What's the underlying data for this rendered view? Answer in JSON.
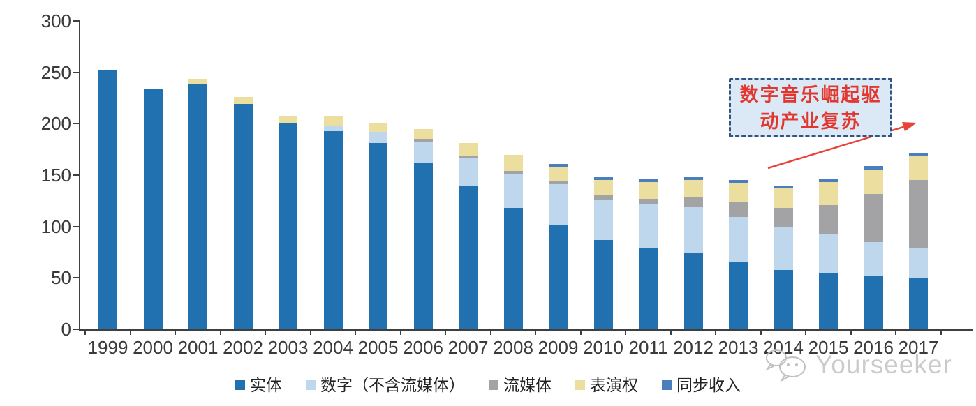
{
  "chart_data": {
    "type": "bar",
    "stacked": true,
    "title": "",
    "xlabel": "",
    "ylabel": "",
    "ylim": [
      0,
      300
    ],
    "yticks": [
      0,
      50,
      100,
      150,
      200,
      250,
      300
    ],
    "grid": false,
    "legend_position": "bottom",
    "categories": [
      "1999",
      "2000",
      "2001",
      "2002",
      "2003",
      "2004",
      "2005",
      "2006",
      "2007",
      "2008",
      "2009",
      "2010",
      "2011",
      "2012",
      "2013",
      "2014",
      "2015",
      "2016",
      "2017"
    ],
    "series": [
      {
        "name": "实体",
        "key": "physical",
        "color": "#2170af",
        "values": [
          252,
          234,
          238,
          219,
          201,
          193,
          181,
          162,
          139,
          118,
          102,
          87,
          79,
          74,
          66,
          58,
          55,
          52,
          50
        ]
      },
      {
        "name": "数字（不含流媒体）",
        "key": "digital-excl-streaming",
        "color": "#bfd7ed",
        "values": [
          0,
          0,
          0,
          0,
          0,
          5,
          11,
          20,
          27,
          33,
          39,
          39,
          43,
          45,
          43,
          41,
          38,
          33,
          29
        ]
      },
      {
        "name": "流媒体",
        "key": "streaming",
        "color": "#a3a3a5",
        "values": [
          0,
          0,
          0,
          0,
          0,
          0,
          0,
          3,
          3,
          3,
          3,
          4,
          5,
          10,
          15,
          19,
          28,
          47,
          66
        ]
      },
      {
        "name": "表演权",
        "key": "performance-rights",
        "color": "#ecde9f",
        "values": [
          0,
          0,
          6,
          7,
          7,
          10,
          9,
          10,
          12,
          16,
          14,
          15,
          16,
          16,
          18,
          19,
          22,
          23,
          24
        ]
      },
      {
        "name": "同步收入",
        "key": "sync",
        "color": "#4a7ebc",
        "values": [
          0,
          0,
          0,
          0,
          0,
          0,
          0,
          0,
          0,
          0,
          3,
          3,
          3,
          3,
          3,
          3,
          3,
          4,
          3
        ]
      }
    ]
  },
  "annotation": {
    "text": "数字音乐崛起驱动产业复苏",
    "line1": "数字音乐崛起驱",
    "line2": "动产业复苏",
    "text_color": "#e3362e",
    "box_fill": "#dbe9f6",
    "box_border": "#33547f",
    "arrow_color": "#e8433a"
  },
  "watermark": {
    "brand": "Yourseeker",
    "icon": "wechat-icon",
    "color": "#c9cbce"
  }
}
